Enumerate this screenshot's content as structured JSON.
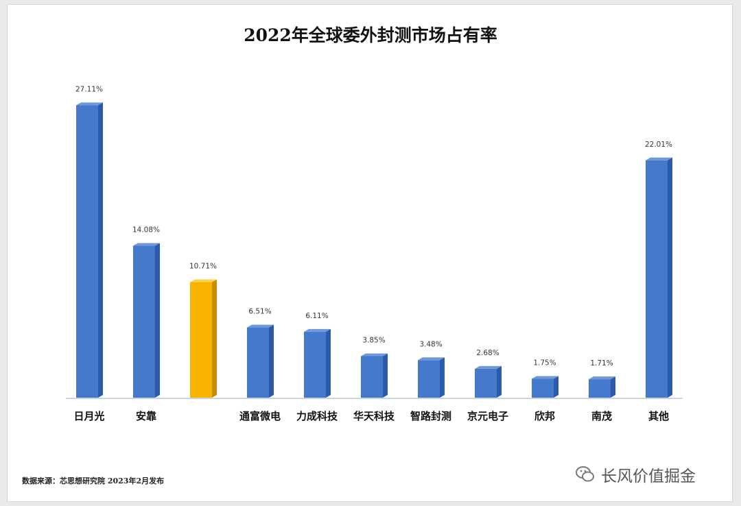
{
  "chart_data": {
    "type": "bar",
    "title": "2022年全球委外封测市场占有率",
    "categories": [
      "日月光",
      "安靠",
      "",
      "通富微电",
      "力成科技",
      "华天科技",
      "智路封测",
      "京元电子",
      "欣邦",
      "南茂",
      "其他"
    ],
    "values": [
      27.11,
      14.08,
      10.71,
      6.51,
      6.11,
      3.85,
      3.48,
      2.68,
      1.75,
      1.71,
      22.01
    ],
    "data_labels": [
      "27.11%",
      "14.08%",
      "10.71%",
      "6.51%",
      "6.11%",
      "3.85%",
      "3.48%",
      "2.68%",
      "1.75%",
      "1.71%",
      "22.01%"
    ],
    "highlight_index": 2,
    "colors": {
      "bar": "#4579cc",
      "bar_side": "#2a5aa8",
      "highlight": "#f7b300",
      "highlight_side": "#c48e00"
    },
    "xlabel": "",
    "ylabel": "",
    "ylim": [
      0,
      30
    ],
    "grid": false,
    "legend": "none"
  },
  "source_note": "数据来源：芯思想研究院 2023年2月发布",
  "watermark": {
    "text": "长风价值掘金",
    "icon": "wechat-icon"
  }
}
